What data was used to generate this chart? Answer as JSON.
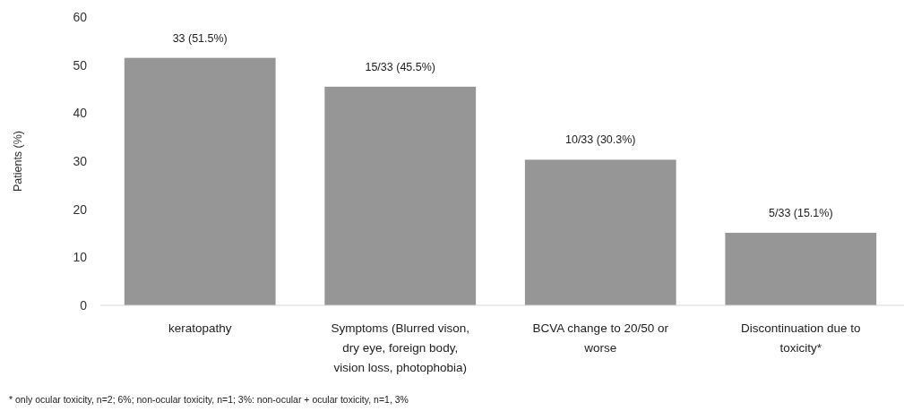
{
  "chart_data": {
    "type": "bar",
    "ylabel": "Patients (%)",
    "categories": [
      "keratopathy",
      "Symptoms (Blurred vison, dry eye, foreign body, vision loss, photophobia)",
      "BCVA change to 20/50 or worse",
      "Discontinuation due to toxicity*"
    ],
    "values": [
      51.5,
      45.5,
      30.3,
      15.1
    ],
    "value_labels": [
      "33 (51.5%)",
      "15/33 (45.5%)",
      "10/33 (30.3%)",
      "5/33 (15.1%)"
    ],
    "color": "#969696",
    "ylim": [
      0,
      60
    ],
    "yticks": [
      0,
      10,
      20,
      30,
      40,
      50,
      60
    ],
    "grid": false,
    "annotations": [
      "* only ocular toxicity, n=2; 6%; non-ocular toxicity, n=1; 3%: non-ocular + ocular toxicity, n=1, 3%"
    ]
  }
}
